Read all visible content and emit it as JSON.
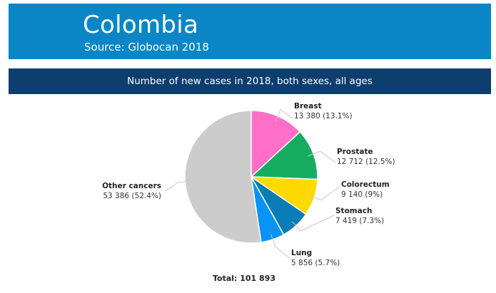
{
  "header": {
    "title": "Colombia",
    "subtitle": "Source: Globocan 2018"
  },
  "chart_data": {
    "type": "pie",
    "title": "Number of new cases in 2018, both sexes, all ages",
    "total_label": "Total: 101 893",
    "slices": [
      {
        "label": "Breast",
        "value": 13380,
        "value_label": "13 380 (13.1%)",
        "color": "#ff6ec7"
      },
      {
        "label": "Prostate",
        "value": 12712,
        "value_label": "12 712 (12.5%)",
        "color": "#17ad61"
      },
      {
        "label": "Colorectum",
        "value": 9140,
        "value_label": "9 140 (9%)",
        "color": "#ffd900"
      },
      {
        "label": "Stomach",
        "value": 7419,
        "value_label": "7 419 (7.3%)",
        "color": "#0a7db7"
      },
      {
        "label": "Lung",
        "value": 5856,
        "value_label": "5 856 (5.7%)",
        "color": "#0a93f5"
      },
      {
        "label": "Other cancers",
        "value": 53386,
        "value_label": "53 386 (52.4%)",
        "color": "#cccccc"
      }
    ]
  }
}
